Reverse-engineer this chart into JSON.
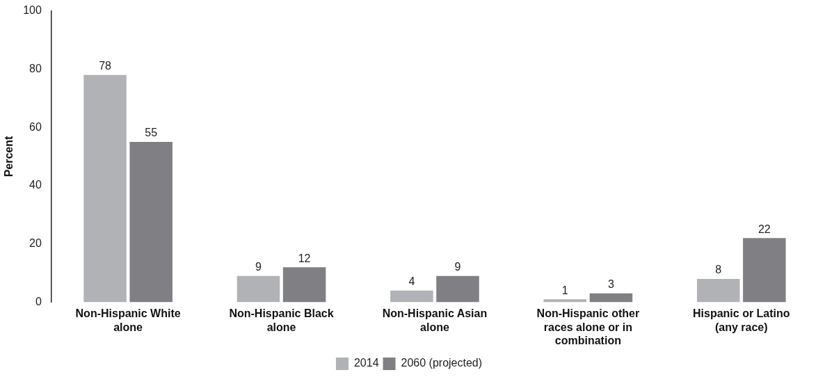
{
  "chart_data": {
    "type": "bar",
    "ylabel": "Percent",
    "categories": [
      "Non-Hispanic White alone",
      "Non-Hispanic Black alone",
      "Non-Hispanic Asian alone",
      "Non-Hispanic other races alone or in combination",
      "Hispanic or Latino (any race)"
    ],
    "series": [
      {
        "name": "2014",
        "color": "#b1b2b6",
        "values": [
          78,
          9,
          4,
          1,
          8
        ]
      },
      {
        "name": "2060 (projected)",
        "color": "#808084",
        "values": [
          55,
          12,
          9,
          3,
          22
        ]
      }
    ],
    "ylim": [
      0,
      100
    ],
    "yticks": [
      0,
      20,
      40,
      60,
      80,
      100
    ],
    "grid": false,
    "legend": "bottom",
    "data_labels": true
  }
}
